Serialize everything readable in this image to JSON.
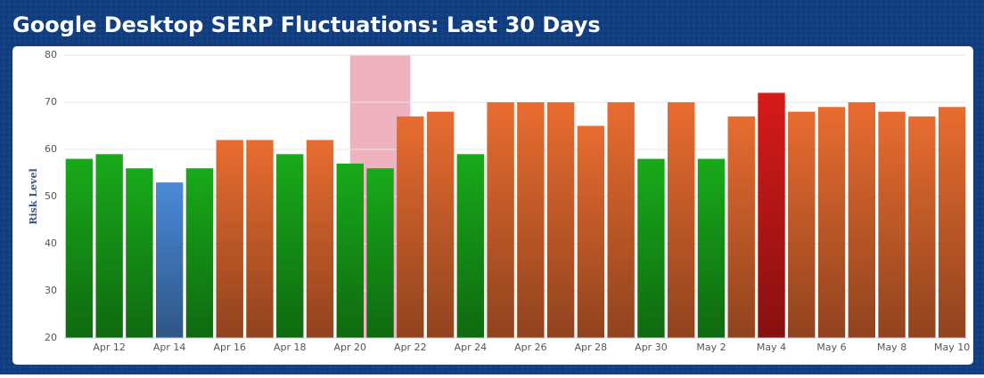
{
  "chart_data": {
    "type": "bar",
    "title": "Google Desktop SERP Fluctuations: Last 30 Days",
    "y_label": "Risk Level",
    "categories": [
      null,
      "Apr 12",
      null,
      "Apr 14",
      null,
      "Apr 16",
      null,
      "Apr 18",
      null,
      "Apr 20",
      null,
      "Apr 22",
      null,
      "Apr 24",
      null,
      "Apr 26",
      null,
      "Apr 28",
      null,
      "Apr 30",
      null,
      "May 2",
      null,
      "May 4",
      null,
      "May 6",
      null,
      "May 8",
      null,
      "May 10"
    ],
    "values": [
      58,
      59,
      56,
      53,
      56,
      62,
      62,
      59,
      62,
      57,
      56,
      67,
      68,
      59,
      70,
      70,
      70,
      65,
      70,
      58,
      70,
      58,
      67,
      72,
      68,
      69,
      70,
      68,
      67,
      69
    ],
    "colors": [
      "#18aa1a",
      "#18aa1a",
      "#18aa1a",
      "#4a8ad8",
      "#18aa1a",
      "#e86c30",
      "#e86c30",
      "#18aa1a",
      "#e86c30",
      "#18aa1a",
      "#18aa1a",
      "#e86c30",
      "#e86c30",
      "#18aa1a",
      "#e86c30",
      "#e86c30",
      "#e86c30",
      "#e86c30",
      "#e86c30",
      "#18aa1a",
      "#e86c30",
      "#18aa1a",
      "#e86c30",
      "#d81a1a",
      "#e86c30",
      "#e86c30",
      "#e86c30",
      "#e86c30",
      "#e86c30",
      "#e86c30"
    ],
    "highlight": {
      "from": "Apr 20",
      "to": "Apr 22",
      "color": "#efb3c0"
    },
    "ylim": [
      20,
      80
    ],
    "yticks": [
      20,
      30,
      40,
      50,
      60,
      70,
      80
    ],
    "grid": true
  }
}
